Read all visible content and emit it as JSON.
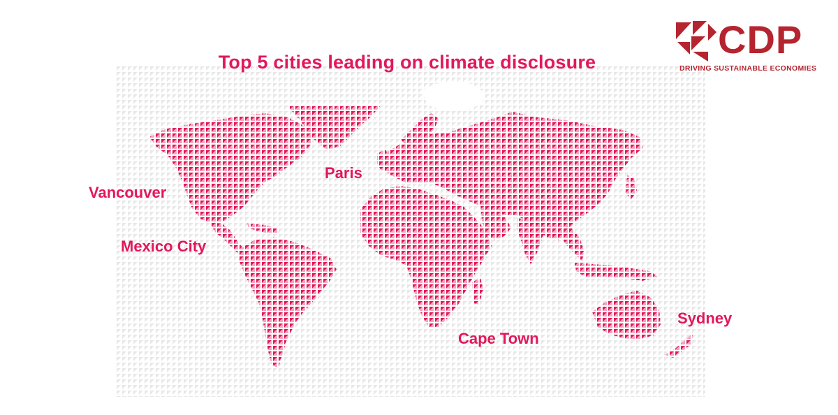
{
  "title": "Top 5 cities leading on climate disclosure",
  "cities": {
    "vancouver": "Vancouver",
    "mexico_city": "Mexico City",
    "paris": "Paris",
    "cape_town": "Cape Town",
    "sydney": "Sydney"
  },
  "logo": {
    "word": "CDP",
    "tagline": "DRIVING SUSTAINABLE ECONOMIES"
  },
  "colors": {
    "accent": "#e1185a",
    "brand_red": "#b5252f",
    "background_pattern": "#e8e8e8"
  }
}
